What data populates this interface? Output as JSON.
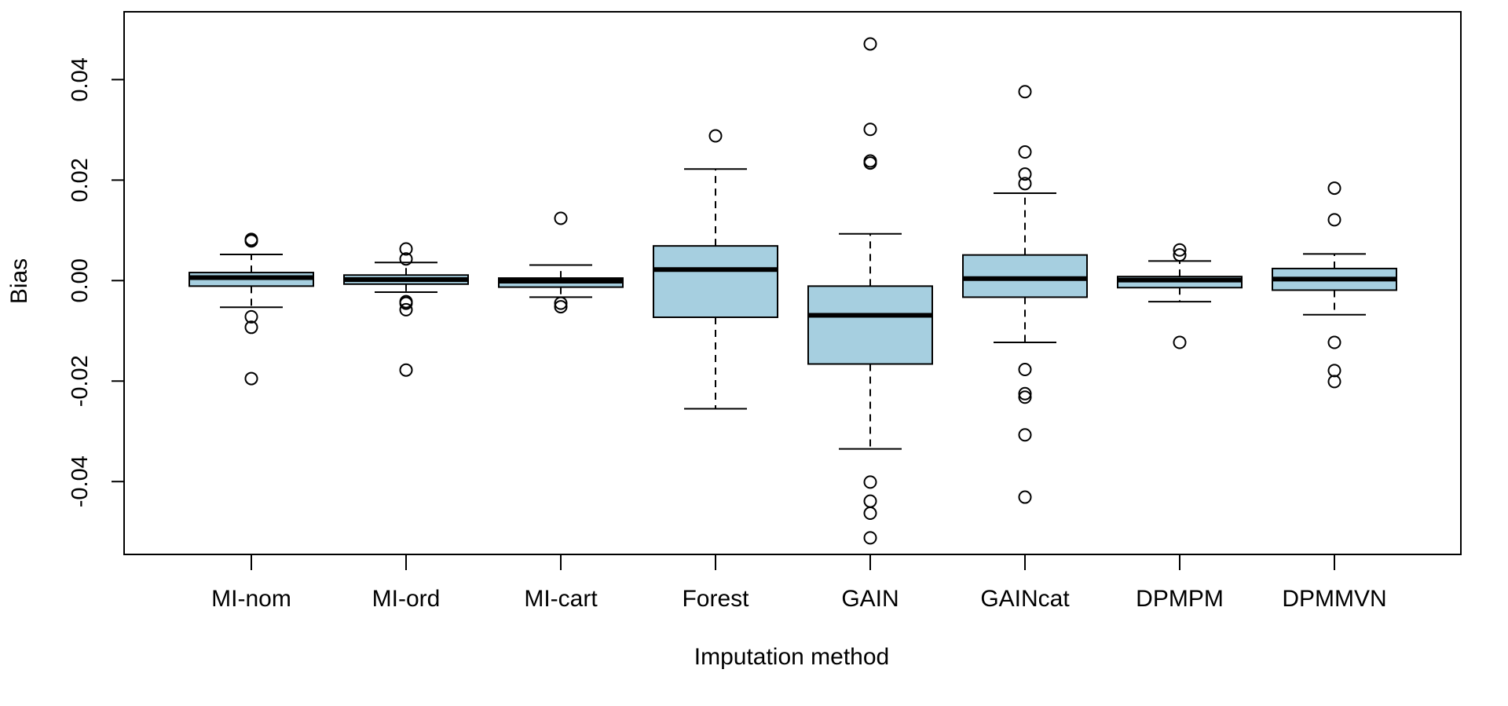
{
  "chart_data": {
    "type": "boxplot",
    "title": "",
    "xlabel": "Imputation method",
    "ylabel": "Bias",
    "ylim": [
      -0.0545,
      0.0535
    ],
    "yticks": [
      -0.04,
      -0.02,
      0.0,
      0.02,
      0.04
    ],
    "ytick_labels": [
      "-0.04",
      "-0.02",
      "0.00",
      "0.02",
      "0.04"
    ],
    "box_color": "#a6cfe0",
    "grid": false,
    "legend": "none",
    "categories": [
      "MI-nom",
      "MI-ord",
      "MI-cart",
      "Forest",
      "GAIN",
      "GAINcat",
      "DPMPM",
      "DPMMVN"
    ],
    "boxes": [
      {
        "name": "MI-nom",
        "whisker_low": -0.0053,
        "q1": -0.0011,
        "median": 0.0006,
        "q3": 0.0016,
        "whisker_high": 0.0052,
        "outliers": [
          0.0082,
          0.0079,
          -0.0072,
          -0.0093,
          -0.0195
        ]
      },
      {
        "name": "MI-ord",
        "whisker_low": -0.0023,
        "q1": -0.0007,
        "median": 0.0002,
        "q3": 0.0011,
        "whisker_high": 0.0036,
        "outliers": [
          0.0063,
          0.0043,
          -0.0042,
          -0.0045,
          -0.0058,
          -0.0178
        ]
      },
      {
        "name": "MI-cart",
        "whisker_low": -0.0033,
        "q1": -0.0013,
        "median": -0.0001,
        "q3": 0.0005,
        "whisker_high": 0.0031,
        "outliers": [
          0.0124,
          -0.0045,
          -0.0052
        ]
      },
      {
        "name": "Forest",
        "whisker_low": -0.0255,
        "q1": -0.0073,
        "median": 0.0022,
        "q3": 0.0069,
        "whisker_high": 0.0222,
        "outliers": [
          0.0288
        ]
      },
      {
        "name": "GAIN",
        "whisker_low": -0.0335,
        "q1": -0.0166,
        "median": -0.0069,
        "q3": -0.0011,
        "whisker_high": 0.0093,
        "outliers": [
          0.0471,
          0.0301,
          0.0238,
          0.0234,
          -0.0401,
          -0.0439,
          -0.0463,
          -0.0512
        ]
      },
      {
        "name": "GAINcat",
        "whisker_low": -0.0123,
        "q1": -0.0033,
        "median": 0.0004,
        "q3": 0.0051,
        "whisker_high": 0.0174,
        "outliers": [
          0.0376,
          0.0256,
          0.0212,
          0.0193,
          -0.0177,
          -0.0225,
          -0.0232,
          -0.0307,
          -0.0431
        ]
      },
      {
        "name": "DPMPM",
        "whisker_low": -0.0042,
        "q1": -0.0014,
        "median": 0.0001,
        "q3": 0.0008,
        "whisker_high": 0.0039,
        "outliers": [
          0.0061,
          0.0051,
          -0.0123
        ]
      },
      {
        "name": "DPMMVN",
        "whisker_low": -0.0068,
        "q1": -0.0019,
        "median": 0.0003,
        "q3": 0.0024,
        "whisker_high": 0.0053,
        "outliers": [
          0.0184,
          0.0121,
          -0.0123,
          -0.0179,
          -0.0201
        ]
      }
    ]
  }
}
